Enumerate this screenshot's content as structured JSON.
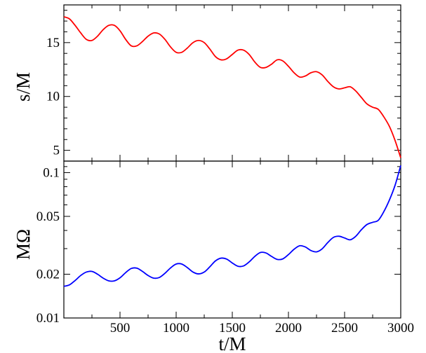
{
  "chart_data": [
    {
      "type": "line",
      "ylabel": "s/M",
      "xlabel": "",
      "xlim": [
        0,
        3000
      ],
      "ylim": [
        4,
        18.5
      ],
      "yscale": "linear",
      "xticks": [
        500,
        1000,
        1500,
        2000,
        2500,
        3000
      ],
      "yticks": [
        5,
        10,
        15
      ],
      "grid": false,
      "series": [
        {
          "color": "#ff0000",
          "x": [
            0,
            50,
            100,
            150,
            200,
            250,
            300,
            350,
            400,
            450,
            500,
            550,
            600,
            650,
            700,
            750,
            800,
            850,
            900,
            950,
            1000,
            1050,
            1100,
            1150,
            1200,
            1250,
            1300,
            1350,
            1400,
            1450,
            1500,
            1550,
            1600,
            1650,
            1700,
            1750,
            1800,
            1850,
            1900,
            1950,
            2000,
            2050,
            2100,
            2150,
            2200,
            2250,
            2300,
            2350,
            2400,
            2450,
            2500,
            2550,
            2600,
            2650,
            2700,
            2750,
            2800,
            2850,
            2900,
            2950,
            3000
          ],
          "values": [
            17.4,
            17.2,
            16.6,
            15.9,
            15.3,
            15.2,
            15.6,
            16.2,
            16.6,
            16.6,
            16.1,
            15.3,
            14.7,
            14.7,
            15.1,
            15.6,
            15.9,
            15.8,
            15.3,
            14.6,
            14.1,
            14.1,
            14.5,
            15.0,
            15.2,
            15.0,
            14.4,
            13.7,
            13.4,
            13.5,
            13.9,
            14.3,
            14.3,
            13.9,
            13.2,
            12.7,
            12.7,
            13.0,
            13.4,
            13.3,
            12.8,
            12.2,
            11.8,
            11.9,
            12.2,
            12.3,
            12.0,
            11.4,
            10.9,
            10.7,
            10.8,
            10.9,
            10.5,
            9.9,
            9.3,
            9.0,
            8.8,
            8.1,
            7.2,
            5.9,
            4.3
          ]
        }
      ]
    },
    {
      "type": "line",
      "ylabel": "MΩ",
      "xlabel": "t/M",
      "xlim": [
        0,
        3000
      ],
      "ylim": [
        0.01,
        0.12
      ],
      "yscale": "log",
      "xticks": [
        500,
        1000,
        1500,
        2000,
        2500,
        3000
      ],
      "yticks": [
        0.01,
        0.02,
        0.05,
        0.1
      ],
      "ytick_labels": [
        "0.01",
        "0.02",
        "0.05",
        "0.1"
      ],
      "grid": false,
      "series": [
        {
          "color": "#0000ff",
          "x": [
            0,
            50,
            100,
            150,
            200,
            250,
            300,
            350,
            400,
            450,
            500,
            550,
            600,
            650,
            700,
            750,
            800,
            850,
            900,
            950,
            1000,
            1050,
            1100,
            1150,
            1200,
            1250,
            1300,
            1350,
            1400,
            1450,
            1500,
            1550,
            1600,
            1650,
            1700,
            1750,
            1800,
            1850,
            1900,
            1950,
            2000,
            2050,
            2100,
            2150,
            2200,
            2250,
            2300,
            2350,
            2400,
            2450,
            2500,
            2550,
            2600,
            2650,
            2700,
            2750,
            2800,
            2850,
            2900,
            2950,
            3000
          ],
          "values": [
            0.0165,
            0.0169,
            0.0181,
            0.0196,
            0.0207,
            0.0209,
            0.02,
            0.0188,
            0.018,
            0.018,
            0.0189,
            0.0205,
            0.0219,
            0.022,
            0.0209,
            0.0196,
            0.0188,
            0.019,
            0.0203,
            0.0221,
            0.0235,
            0.0235,
            0.0222,
            0.0207,
            0.0201,
            0.0207,
            0.0225,
            0.0247,
            0.0258,
            0.0254,
            0.0239,
            0.0227,
            0.0228,
            0.0243,
            0.0265,
            0.0282,
            0.028,
            0.0265,
            0.0253,
            0.0255,
            0.0273,
            0.0297,
            0.0314,
            0.0308,
            0.0291,
            0.0285,
            0.0299,
            0.033,
            0.0358,
            0.0365,
            0.0355,
            0.0345,
            0.0365,
            0.0405,
            0.044,
            0.0455,
            0.047,
            0.054,
            0.065,
            0.082,
            0.112
          ]
        }
      ]
    }
  ]
}
